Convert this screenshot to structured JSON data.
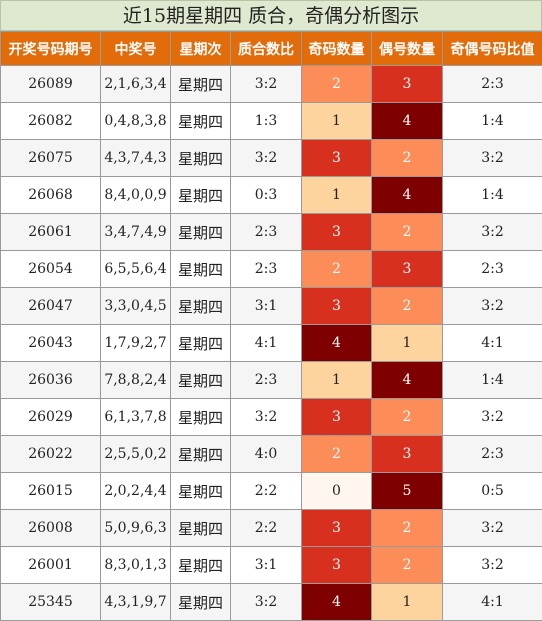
{
  "title": "近15期星期四 质合，奇偶分析图示",
  "headers": [
    "开奖号码期号",
    "中奖号",
    "星期次",
    "质合数比",
    "奇码数量",
    "偶号数量",
    "奇偶号码比值"
  ],
  "colors": {
    "count_0": "#fff7ee",
    "count_1": "#fdd49e",
    "count_2": "#fc8d59",
    "count_3": "#d7301f",
    "count_4": "#7f0000",
    "count_5": "#7f0000",
    "text_dark": "#222222",
    "text_light": "#ffffff"
  },
  "rows": [
    {
      "issue": "26089",
      "numbers": "2,1,6,3,4",
      "weekday": "星期四",
      "prime_ratio": "3:2",
      "odd": "2",
      "even": "3",
      "odd_even_ratio": "2:3"
    },
    {
      "issue": "26082",
      "numbers": "0,4,8,3,8",
      "weekday": "星期四",
      "prime_ratio": "1:3",
      "odd": "1",
      "even": "4",
      "odd_even_ratio": "1:4"
    },
    {
      "issue": "26075",
      "numbers": "4,3,7,4,3",
      "weekday": "星期四",
      "prime_ratio": "3:2",
      "odd": "3",
      "even": "2",
      "odd_even_ratio": "3:2"
    },
    {
      "issue": "26068",
      "numbers": "8,4,0,0,9",
      "weekday": "星期四",
      "prime_ratio": "0:3",
      "odd": "1",
      "even": "4",
      "odd_even_ratio": "1:4"
    },
    {
      "issue": "26061",
      "numbers": "3,4,7,4,9",
      "weekday": "星期四",
      "prime_ratio": "2:3",
      "odd": "3",
      "even": "2",
      "odd_even_ratio": "3:2"
    },
    {
      "issue": "26054",
      "numbers": "6,5,5,6,4",
      "weekday": "星期四",
      "prime_ratio": "2:3",
      "odd": "2",
      "even": "3",
      "odd_even_ratio": "2:3"
    },
    {
      "issue": "26047",
      "numbers": "3,3,0,4,5",
      "weekday": "星期四",
      "prime_ratio": "3:1",
      "odd": "3",
      "even": "2",
      "odd_even_ratio": "3:2"
    },
    {
      "issue": "26043",
      "numbers": "1,7,9,2,7",
      "weekday": "星期四",
      "prime_ratio": "4:1",
      "odd": "4",
      "even": "1",
      "odd_even_ratio": "4:1"
    },
    {
      "issue": "26036",
      "numbers": "7,8,8,2,4",
      "weekday": "星期四",
      "prime_ratio": "2:3",
      "odd": "1",
      "even": "4",
      "odd_even_ratio": "1:4"
    },
    {
      "issue": "26029",
      "numbers": "6,1,3,7,8",
      "weekday": "星期四",
      "prime_ratio": "3:2",
      "odd": "3",
      "even": "2",
      "odd_even_ratio": "3:2"
    },
    {
      "issue": "26022",
      "numbers": "2,5,5,0,2",
      "weekday": "星期四",
      "prime_ratio": "4:0",
      "odd": "2",
      "even": "3",
      "odd_even_ratio": "2:3"
    },
    {
      "issue": "26015",
      "numbers": "2,0,2,4,4",
      "weekday": "星期四",
      "prime_ratio": "2:2",
      "odd": "0",
      "even": "5",
      "odd_even_ratio": "0:5"
    },
    {
      "issue": "26008",
      "numbers": "5,0,9,6,3",
      "weekday": "星期四",
      "prime_ratio": "2:2",
      "odd": "3",
      "even": "2",
      "odd_even_ratio": "3:2"
    },
    {
      "issue": "26001",
      "numbers": "8,3,0,1,3",
      "weekday": "星期四",
      "prime_ratio": "3:1",
      "odd": "3",
      "even": "2",
      "odd_even_ratio": "3:2"
    },
    {
      "issue": "25345",
      "numbers": "4,3,1,9,7",
      "weekday": "星期四",
      "prime_ratio": "3:2",
      "odd": "4",
      "even": "1",
      "odd_even_ratio": "4:1"
    }
  ]
}
